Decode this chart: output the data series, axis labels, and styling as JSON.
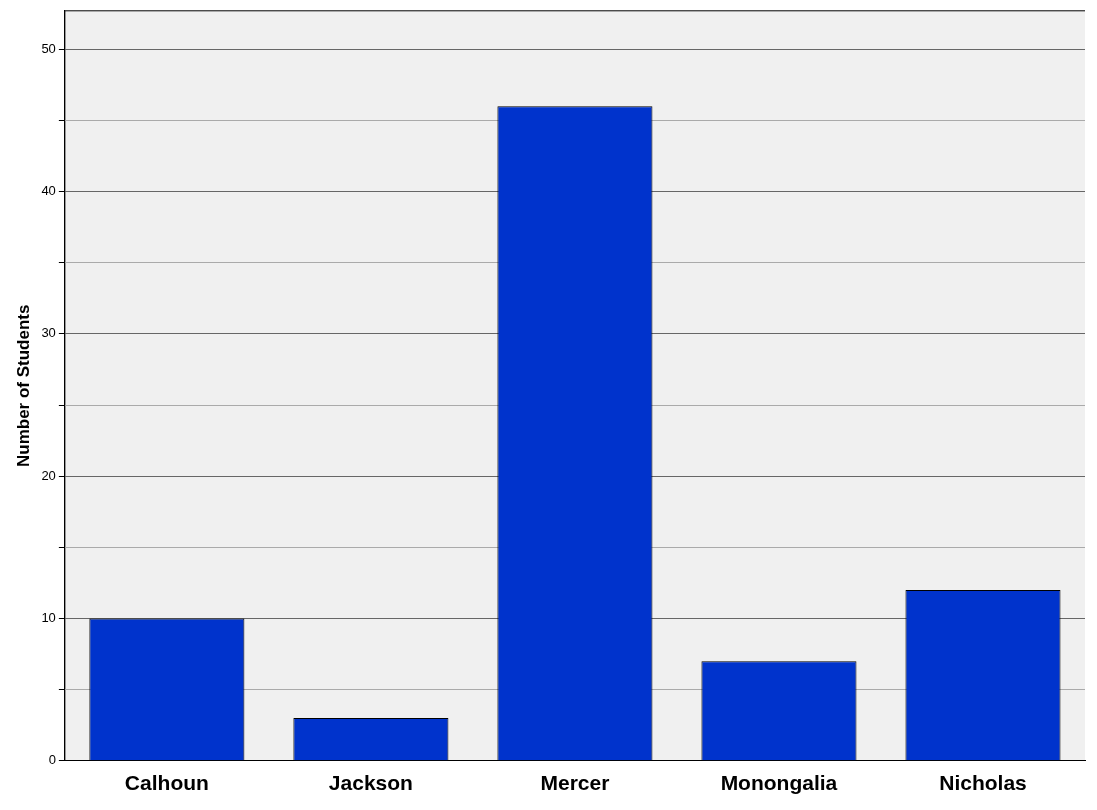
{
  "chart_data": {
    "type": "bar",
    "ylabel": "Number of Students",
    "categories": [
      "Calhoun",
      "Jackson",
      "Mercer",
      "Monongalia",
      "Nicholas"
    ],
    "values": [
      10,
      3,
      46,
      7,
      12
    ],
    "color": "#0033cc",
    "ylim": [
      0,
      52.7
    ],
    "yticks": [
      0,
      {
        "value": 5,
        "label": null
      },
      10,
      {
        "value": 15,
        "label": null
      },
      20,
      {
        "value": 25,
        "label": null
      },
      30,
      {
        "value": 35,
        "label": null
      },
      40,
      {
        "value": 45,
        "label": null
      },
      50
    ],
    "grid": "y",
    "legend": false
  }
}
